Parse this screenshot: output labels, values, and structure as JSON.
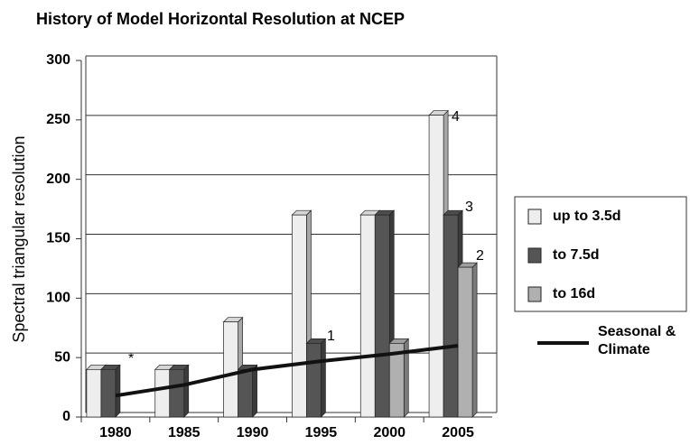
{
  "chart_data": {
    "type": "bar",
    "title": "History of Model Horizontal Resolution at NCEP",
    "y_label": "Spectral triangular resolution",
    "categories": [
      "1980",
      "1985",
      "1990",
      "1995",
      "2000",
      "2005"
    ],
    "series": [
      {
        "name": "up to 3.5d",
        "color": "#eeeeee",
        "values": [
          40,
          40,
          80,
          170,
          170,
          254
        ]
      },
      {
        "name": "to 7.5d",
        "color": "#555555",
        "values": [
          40,
          40,
          40,
          62,
          170,
          170
        ]
      },
      {
        "name": "to 16d",
        "color": "#b0b0b0",
        "values": [
          null,
          null,
          null,
          null,
          62,
          126
        ]
      },
      {
        "name": "Seasonal & Climate",
        "type": "line",
        "color": "#111111",
        "values": [
          18,
          27,
          40,
          47,
          53,
          60
        ]
      }
    ],
    "annotations": [
      "*",
      "1",
      "2",
      "3",
      "4"
    ],
    "ylim": [
      0,
      300
    ],
    "yticks": [
      0,
      50,
      100,
      150,
      200,
      250,
      300
    ],
    "grid": true
  }
}
